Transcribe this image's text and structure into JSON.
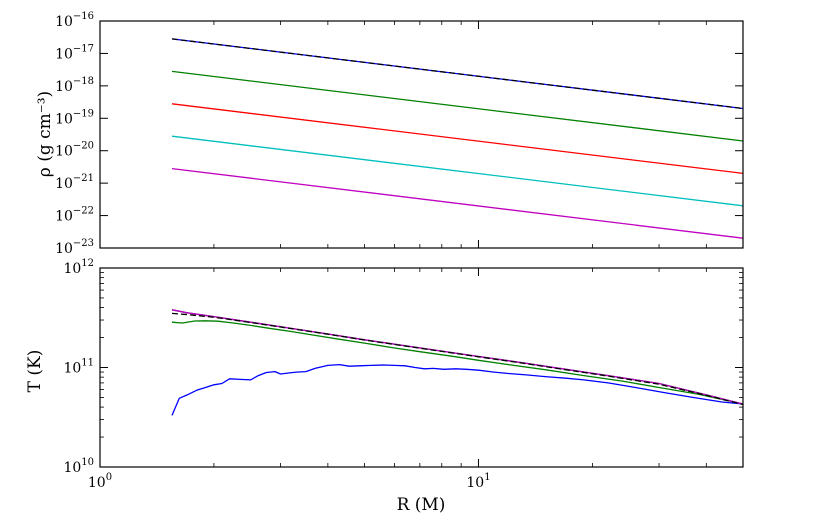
{
  "chart_data": [
    {
      "type": "line",
      "panel": "top",
      "ylabel": "ρ (g cm⁻³)",
      "xscale": "log",
      "yscale": "log",
      "xlim": [
        1,
        50
      ],
      "ylim": [
        1e-23,
        1e-16
      ],
      "x_major_ticks": [
        1,
        10
      ],
      "x_tick_labels_shown": false,
      "y_ticks": [
        {
          "value": 1e-16,
          "base": "10",
          "exp": "−16"
        },
        {
          "value": 1e-17,
          "base": "10",
          "exp": "−17"
        },
        {
          "value": 1e-18,
          "base": "10",
          "exp": "−18"
        },
        {
          "value": 1e-19,
          "base": "10",
          "exp": "−19"
        },
        {
          "value": 1e-20,
          "base": "10",
          "exp": "−20"
        },
        {
          "value": 1e-21,
          "base": "10",
          "exp": "−21"
        },
        {
          "value": 1e-22,
          "base": "10",
          "exp": "−22"
        },
        {
          "value": 1e-23,
          "base": "10",
          "exp": "−23"
        }
      ],
      "grid": false,
      "series": [
        {
          "color": "#0000ff",
          "dash": false,
          "x": [
            1.55,
            50
          ],
          "y": [
            2.8e-17,
            2e-19
          ]
        },
        {
          "color": "#000000",
          "dash": true,
          "x": [
            1.55,
            50
          ],
          "y": [
            2.8e-17,
            2e-19
          ]
        },
        {
          "color": "#008000",
          "dash": false,
          "x": [
            1.55,
            50
          ],
          "y": [
            2.8e-18,
            2e-20
          ]
        },
        {
          "color": "#ff0000",
          "dash": false,
          "x": [
            1.55,
            50
          ],
          "y": [
            2.8e-19,
            2e-21
          ]
        },
        {
          "color": "#00bfbf",
          "dash": false,
          "x": [
            1.55,
            50
          ],
          "y": [
            2.8e-20,
            2e-22
          ]
        },
        {
          "color": "#bf00bf",
          "dash": false,
          "x": [
            1.55,
            50
          ],
          "y": [
            2.8e-21,
            2e-23
          ]
        }
      ]
    },
    {
      "type": "line",
      "panel": "bottom",
      "xlabel": "R (M)",
      "ylabel": "T (K)",
      "xscale": "log",
      "yscale": "log",
      "xlim": [
        1,
        50
      ],
      "ylim": [
        10000000000.0,
        1000000000000.0
      ],
      "x_ticks": [
        {
          "value": 1,
          "base": "10",
          "exp": "0"
        },
        {
          "value": 10,
          "base": "10",
          "exp": "1"
        }
      ],
      "y_ticks": [
        {
          "value": 10000000000.0,
          "base": "10",
          "exp": "10"
        },
        {
          "value": 100000000000.0,
          "base": "10",
          "exp": "11"
        },
        {
          "value": 1000000000000.0,
          "base": "10",
          "exp": "12"
        }
      ],
      "grid": false,
      "series": [
        {
          "color": "#0000ff",
          "dash": false,
          "x": [
            1.55,
            1.62,
            1.7,
            1.8,
            1.9,
            2.0,
            2.1,
            2.2,
            2.35,
            2.5,
            2.62,
            2.75,
            2.9,
            3.0,
            3.15,
            3.3,
            3.5,
            3.7,
            4.0,
            4.3,
            4.55,
            4.85,
            5.2,
            5.6,
            6.0,
            6.4,
            6.8,
            7.2,
            7.6,
            8.1,
            8.7,
            9.3,
            10.0,
            11.0,
            12.0,
            13.5,
            15.0,
            17.0,
            19.0,
            22.0,
            26.0,
            31.0,
            37.0,
            44.0,
            50.0
          ],
          "y": [
            33000000000.0,
            49000000000.0,
            53000000000.0,
            59000000000.0,
            63000000000.0,
            67000000000.0,
            69000000000.0,
            77000000000.0,
            76000000000.0,
            75000000000.0,
            83000000000.0,
            89000000000.0,
            91000000000.0,
            86000000000.0,
            88000000000.0,
            90000000000.0,
            91000000000.0,
            98000000000.0,
            105000000000.0,
            107000000000.0,
            103000000000.0,
            104000000000.0,
            105000000000.0,
            106000000000.0,
            105000000000.0,
            104000000000.0,
            100000000000.0,
            97000000000.0,
            98000000000.0,
            96000000000.0,
            97000000000.0,
            96000000000.0,
            94000000000.0,
            90000000000.0,
            87000000000.0,
            84000000000.0,
            81000000000.0,
            78000000000.0,
            75000000000.0,
            70000000000.0,
            63000000000.0,
            56000000000.0,
            50000000000.0,
            45000000000.0,
            43000000000.0
          ]
        },
        {
          "color": "#008000",
          "dash": false,
          "x": [
            1.55,
            1.65,
            1.78,
            1.9,
            2.05,
            2.25,
            2.5,
            2.8,
            3.2,
            3.7,
            4.3,
            5.0,
            6.0,
            7.0,
            8.5,
            10.0,
            12.0,
            15.0,
            19.0,
            24.0,
            30.0,
            38.0,
            50.0
          ],
          "y": [
            285000000000.0,
            280000000000.0,
            293000000000.0,
            295000000000.0,
            292000000000.0,
            280000000000.0,
            265000000000.0,
            248000000000.0,
            230000000000.0,
            210000000000.0,
            192000000000.0,
            176000000000.0,
            157000000000.0,
            144000000000.0,
            130000000000.0,
            118000000000.0,
            107000000000.0,
            95000000000.0,
            83000000000.0,
            73000000000.0,
            63000000000.0,
            54000000000.0,
            43000000000.0
          ]
        },
        {
          "color": "#ff0000",
          "dash": false,
          "x": [
            1.55,
            1.7,
            2.0,
            2.5,
            3.2,
            4.0,
            5.0,
            6.5,
            8.0,
            10.0,
            13.0,
            17.0,
            22.0,
            30.0,
            40.0,
            50.0
          ],
          "y": [
            380000000000.0,
            355000000000.0,
            325000000000.0,
            285000000000.0,
            247000000000.0,
            217000000000.0,
            190000000000.0,
            164000000000.0,
            146000000000.0,
            129000000000.0,
            112000000000.0,
            96000000000.0,
            83000000000.0,
            69000000000.0,
            53000000000.0,
            43000000000.0
          ]
        },
        {
          "color": "#00bfbf",
          "dash": false,
          "x": [
            1.55,
            1.7,
            2.0,
            2.5,
            3.2,
            4.0,
            5.0,
            6.5,
            8.0,
            10.0,
            13.0,
            17.0,
            22.0,
            30.0,
            40.0,
            50.0
          ],
          "y": [
            380000000000.0,
            355000000000.0,
            325000000000.0,
            285000000000.0,
            247000000000.0,
            217000000000.0,
            190000000000.0,
            164000000000.0,
            146000000000.0,
            129000000000.0,
            112000000000.0,
            96000000000.0,
            83000000000.0,
            69000000000.0,
            53000000000.0,
            43000000000.0
          ]
        },
        {
          "color": "#bf00bf",
          "dash": false,
          "x": [
            1.55,
            1.7,
            2.0,
            2.5,
            3.2,
            4.0,
            5.0,
            6.5,
            8.0,
            10.0,
            13.0,
            17.0,
            22.0,
            30.0,
            40.0,
            50.0
          ],
          "y": [
            380000000000.0,
            355000000000.0,
            325000000000.0,
            285000000000.0,
            247000000000.0,
            217000000000.0,
            190000000000.0,
            164000000000.0,
            146000000000.0,
            129000000000.0,
            112000000000.0,
            96000000000.0,
            83000000000.0,
            69000000000.0,
            53000000000.0,
            43000000000.0
          ]
        },
        {
          "color": "#000000",
          "dash": true,
          "x": [
            1.55,
            1.7,
            2.0,
            2.5,
            3.2,
            4.0,
            5.0,
            6.5,
            8.0,
            10.0,
            13.0,
            17.0,
            22.0,
            30.0,
            40.0,
            50.0
          ],
          "y": [
            350000000000.0,
            340000000000.0,
            320000000000.0,
            283000000000.0,
            246000000000.0,
            216000000000.0,
            189000000000.0,
            163000000000.0,
            145000000000.0,
            128000000000.0,
            111000000000.0,
            95000000000.0,
            82000000000.0,
            68000000000.0,
            52500000000.0,
            42500000000.0
          ]
        }
      ]
    }
  ]
}
